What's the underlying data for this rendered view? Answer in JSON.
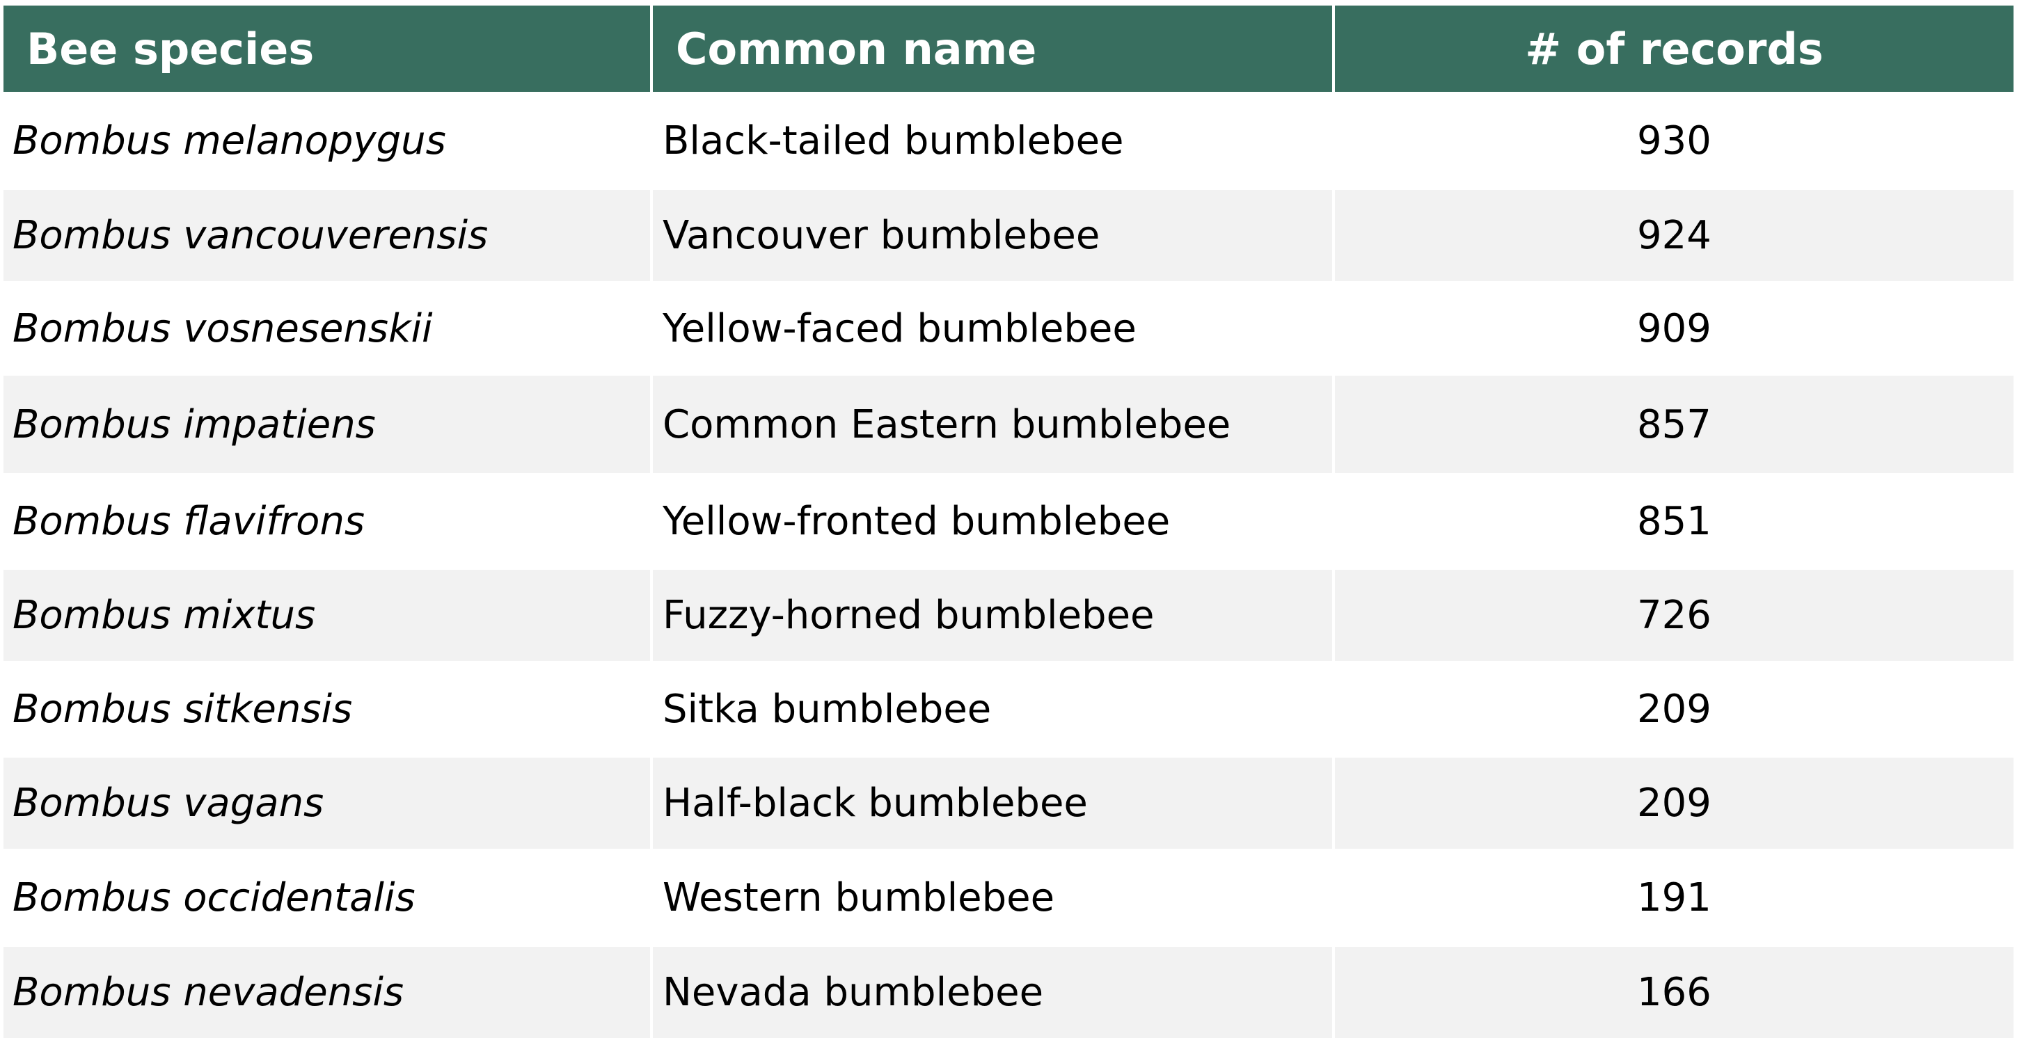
{
  "table": {
    "headers": [
      "Bee species",
      "Common name",
      "# of records"
    ],
    "rows": [
      {
        "species": "Bombus melanopygus",
        "common": "Black-tailed bumblebee",
        "records": "930"
      },
      {
        "species": "Bombus vancouverensis",
        "common": "Vancouver bumblebee",
        "records": "924"
      },
      {
        "species": "Bombus vosnesenskii",
        "common": "Yellow-faced bumblebee",
        "records": "909"
      },
      {
        "species": "Bombus impatiens",
        "common": "Common Eastern bumblebee",
        "records": "857"
      },
      {
        "species": "Bombus flavifrons",
        "common": "Yellow-fronted bumblebee",
        "records": "851"
      },
      {
        "species": "Bombus mixtus",
        "common": "Fuzzy-horned bumblebee",
        "records": "726"
      },
      {
        "species": "Bombus sitkensis",
        "common": "Sitka bumblebee",
        "records": "209"
      },
      {
        "species": "Bombus vagans",
        "common": "Half-black bumblebee",
        "records": "209"
      },
      {
        "species": "Bombus occidentalis",
        "common": "Western bumblebee",
        "records": "191"
      },
      {
        "species": "Bombus nevadensis",
        "common": "Nevada bumblebee",
        "records": "166"
      }
    ]
  },
  "colors": {
    "header_bg": "#386e5f",
    "header_text": "#ffffff",
    "row_alt_bg": "#f2f2f2"
  }
}
